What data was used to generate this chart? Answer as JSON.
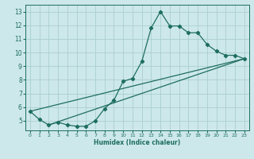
{
  "xlabel": "Humidex (Indice chaleur)",
  "bg_color": "#cde8ea",
  "grid_color": "#aaced0",
  "line_color": "#1e6e5e",
  "xlim": [
    -0.5,
    23.5
  ],
  "ylim": [
    4.3,
    13.5
  ],
  "xticks": [
    0,
    1,
    2,
    3,
    4,
    5,
    6,
    7,
    8,
    9,
    10,
    11,
    12,
    13,
    14,
    15,
    16,
    17,
    18,
    19,
    20,
    21,
    22,
    23
  ],
  "yticks": [
    5,
    6,
    7,
    8,
    9,
    10,
    11,
    12,
    13
  ],
  "line1_x": [
    0,
    1,
    2,
    3,
    4,
    5,
    6,
    7,
    8,
    9,
    10,
    11,
    12,
    13,
    14,
    15,
    16,
    17,
    18,
    19,
    20,
    21,
    22,
    23
  ],
  "line1_y": [
    5.7,
    5.1,
    4.7,
    4.9,
    4.7,
    4.6,
    4.6,
    5.0,
    5.9,
    6.5,
    7.9,
    8.1,
    9.35,
    11.8,
    13.0,
    11.95,
    11.95,
    11.45,
    11.45,
    10.6,
    10.1,
    9.8,
    9.8,
    9.55
  ],
  "line2_x": [
    0,
    23
  ],
  "line2_y": [
    5.7,
    9.55
  ],
  "line3_x": [
    2,
    23
  ],
  "line3_y": [
    4.7,
    9.55
  ]
}
